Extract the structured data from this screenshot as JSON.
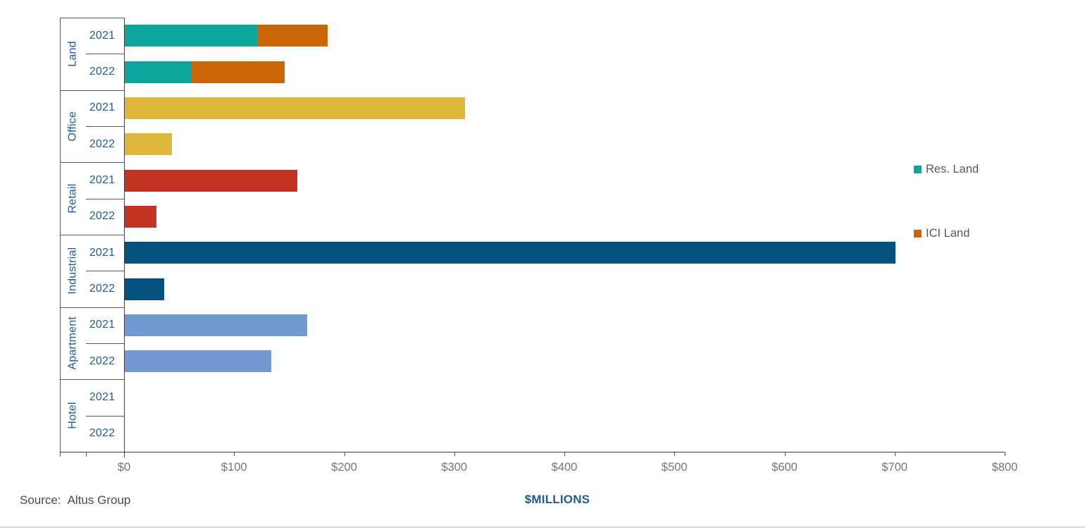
{
  "source": {
    "label": "Source:",
    "value": "Altus Group"
  },
  "colors": {
    "res_land": "#0ca69d",
    "ici_land": "#ca6606",
    "office": "#dfb73c",
    "retail": "#c23321",
    "industrial": "#04507e",
    "apartment": "#7299d0",
    "hotel": "#9aa4ad",
    "label_blue": "#1f5c99",
    "tick_text": "#767676",
    "legend_text": "#595959",
    "axis_line": "#404040",
    "grid_line": "#595959"
  },
  "legend": {
    "position": "right",
    "items": [
      {
        "label": "Res. Land",
        "color_key": "res_land"
      },
      {
        "label": "ICI Land",
        "color_key": "ici_land"
      }
    ]
  },
  "chart_data": {
    "type": "bar",
    "orientation": "horizontal",
    "stacked": true,
    "title": "",
    "xlabel": "$MILLIONS",
    "ylabel": "",
    "unit": "$Millions",
    "xlim": [
      0,
      800
    ],
    "x_tick_step": 100,
    "x_tick_labels": [
      "$0",
      "$100",
      "$200",
      "$300",
      "$400",
      "$500",
      "$600",
      "$700",
      "$800"
    ],
    "grid": false,
    "groups": [
      {
        "category": "Land",
        "rows": [
          {
            "year": "2021",
            "segments": [
              {
                "name": "Res. Land",
                "value": 120,
                "color_key": "res_land"
              },
              {
                "name": "ICI Land",
                "value": 64,
                "color_key": "ici_land"
              }
            ]
          },
          {
            "year": "2022",
            "segments": [
              {
                "name": "Res. Land",
                "value": 61,
                "color_key": "res_land"
              },
              {
                "name": "ICI Land",
                "value": 84,
                "color_key": "ici_land"
              }
            ]
          }
        ]
      },
      {
        "category": "Office",
        "rows": [
          {
            "year": "2021",
            "segments": [
              {
                "name": "Office",
                "value": 309,
                "color_key": "office"
              }
            ]
          },
          {
            "year": "2022",
            "segments": [
              {
                "name": "Office",
                "value": 43,
                "color_key": "office"
              }
            ]
          }
        ]
      },
      {
        "category": "Retail",
        "rows": [
          {
            "year": "2021",
            "segments": [
              {
                "name": "Retail",
                "value": 157,
                "color_key": "retail"
              }
            ]
          },
          {
            "year": "2022",
            "segments": [
              {
                "name": "Retail",
                "value": 29,
                "color_key": "retail"
              }
            ]
          }
        ]
      },
      {
        "category": "Industrial",
        "rows": [
          {
            "year": "2021",
            "segments": [
              {
                "name": "Industrial",
                "value": 700,
                "color_key": "industrial"
              }
            ]
          },
          {
            "year": "2022",
            "segments": [
              {
                "name": "Industrial",
                "value": 36,
                "color_key": "industrial"
              }
            ]
          }
        ]
      },
      {
        "category": "Apartment",
        "rows": [
          {
            "year": "2021",
            "segments": [
              {
                "name": "Apartment",
                "value": 166,
                "color_key": "apartment"
              }
            ]
          },
          {
            "year": "2022",
            "segments": [
              {
                "name": "Apartment",
                "value": 133,
                "color_key": "apartment"
              }
            ]
          }
        ]
      },
      {
        "category": "Hotel",
        "rows": [
          {
            "year": "2021",
            "segments": [
              {
                "name": "Hotel",
                "value": 0,
                "color_key": "hotel"
              }
            ]
          },
          {
            "year": "2022",
            "segments": [
              {
                "name": "Hotel",
                "value": 0,
                "color_key": "hotel"
              }
            ]
          }
        ]
      }
    ]
  }
}
